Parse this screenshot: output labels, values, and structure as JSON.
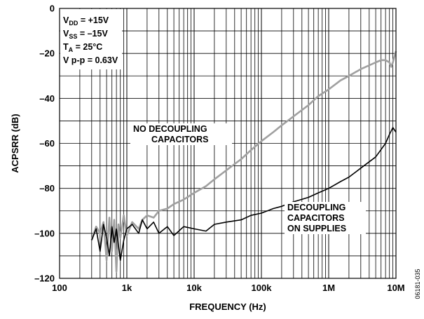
{
  "chart_data": {
    "type": "line",
    "xlabel": "FREQUENCY (Hz)",
    "ylabel": "ACPSRR (dB)",
    "x_scale": "log",
    "xlim": [
      100,
      10000000
    ],
    "ylim": [
      -120,
      0
    ],
    "grid": true,
    "x_tick_labels": [
      "100",
      "1k",
      "10k",
      "100k",
      "1M",
      "10M"
    ],
    "y_tick_labels": [
      "0",
      "–20",
      "–40",
      "–60",
      "–80",
      "–100",
      "–120"
    ],
    "conditions": {
      "vdd": {
        "pre": "V",
        "sub": "DD",
        "post": " = +15V"
      },
      "vss": {
        "pre": "V",
        "sub": "SS",
        "post": " = –15V"
      },
      "ta": {
        "pre": "T",
        "sub": "A",
        "post": " = 25°C"
      },
      "vpp": {
        "pre": "V p-p = 0.63V",
        "sub": "",
        "post": ""
      }
    },
    "annotations": {
      "no_decoupling": [
        "NO DECOUPLING",
        "CAPACITORS"
      ],
      "decoupling": [
        "DECOUPLING",
        "CAPACITORS",
        "ON SUPPLIES"
      ]
    },
    "figure_id": "06181-035",
    "series": [
      {
        "key": "no_decoupling",
        "color": "#a0a0a0",
        "x": [
          300,
          350,
          400,
          450,
          500,
          550,
          600,
          650,
          700,
          750,
          800,
          900,
          1000,
          1200,
          1500,
          1700,
          2000,
          2500,
          3000,
          4000,
          5000,
          7000,
          10000,
          15000,
          20000,
          30000,
          50000,
          70000,
          100000,
          150000,
          200000,
          300000,
          500000,
          700000,
          1000000,
          1500000,
          2000000,
          3000000,
          5000000,
          6000000,
          7000000,
          8000000,
          8500000,
          9000000,
          10000000
        ],
        "y": [
          -103,
          -97,
          -100,
          -95,
          -112,
          -93,
          -108,
          -94,
          -117,
          -96,
          -102,
          -92,
          -101,
          -95,
          -98,
          -94,
          -92,
          -93,
          -90,
          -89,
          -87,
          -85,
          -82,
          -79,
          -76,
          -72,
          -67,
          -63,
          -59,
          -55,
          -52,
          -48,
          -43,
          -39,
          -36,
          -32,
          -30,
          -27,
          -24,
          -23,
          -23,
          -24,
          -26,
          -24,
          -19
        ]
      },
      {
        "key": "decoupling",
        "color": "#000000",
        "x": [
          300,
          350,
          400,
          450,
          500,
          550,
          600,
          650,
          700,
          800,
          900,
          1000,
          1200,
          1500,
          1700,
          2000,
          2500,
          3000,
          4000,
          5000,
          7000,
          10000,
          15000,
          20000,
          30000,
          50000,
          70000,
          100000,
          150000,
          200000,
          300000,
          500000,
          700000,
          1000000,
          1500000,
          2000000,
          3000000,
          5000000,
          7000000,
          8000000,
          9000000,
          10000000
        ],
        "y": [
          -103,
          -98,
          -108,
          -96,
          -102,
          -110,
          -97,
          -104,
          -98,
          -112,
          -103,
          -98,
          -96,
          -100,
          -94,
          -98,
          -95,
          -100,
          -97,
          -101,
          -97,
          -98,
          -99,
          -96,
          -95,
          -94,
          -92,
          -91,
          -89,
          -88,
          -86,
          -84,
          -82,
          -80,
          -77,
          -75,
          -71,
          -66,
          -60,
          -56,
          -53,
          -55
        ]
      }
    ]
  }
}
